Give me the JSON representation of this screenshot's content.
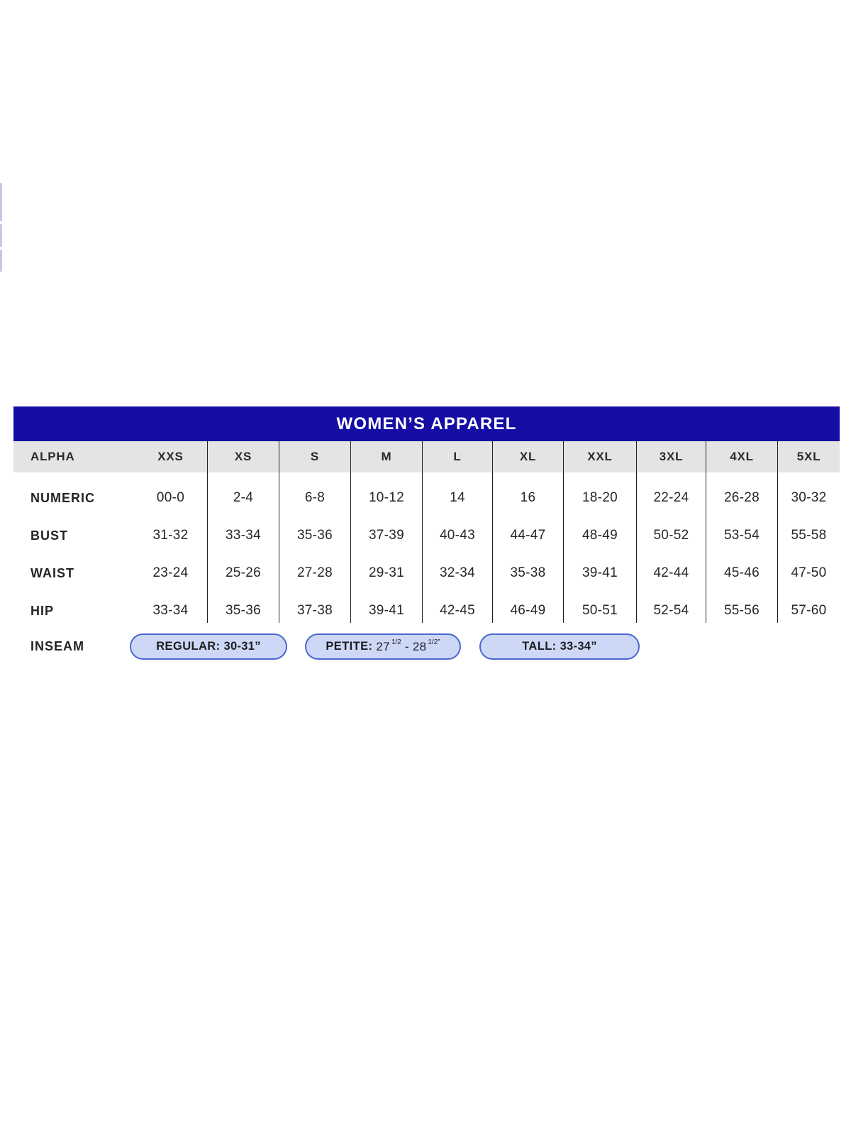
{
  "decor": {
    "left_edge_fragment_color": "#c9c5ec"
  },
  "colors": {
    "title_bar_bg": "#150da4",
    "title_text": "#ffffff",
    "header_row_bg": "#e4e4e4",
    "divider_line": "#202020",
    "body_text": "#262626",
    "pill_fill": "#cdd8f7",
    "pill_border": "#4a68cf"
  },
  "chart_data": {
    "type": "table",
    "title": "WOMEN’S APPAREL",
    "corner_label": "ALPHA",
    "columns": [
      "XXS",
      "XS",
      "S",
      "M",
      "L",
      "XL",
      "XXL",
      "3XL",
      "4XL",
      "5XL"
    ],
    "rows": [
      {
        "label": "NUMERIC",
        "values": [
          "00-0",
          "2-4",
          "6-8",
          "10-12",
          "14",
          "16",
          "18-20",
          "22-24",
          "26-28",
          "30-32"
        ]
      },
      {
        "label": "BUST",
        "values": [
          "31-32",
          "33-34",
          "35-36",
          "37-39",
          "40-43",
          "44-47",
          "48-49",
          "50-52",
          "53-54",
          "55-58"
        ]
      },
      {
        "label": "WAIST",
        "values": [
          "23-24",
          "25-26",
          "27-28",
          "29-31",
          "32-34",
          "35-38",
          "39-41",
          "42-44",
          "45-46",
          "47-50"
        ]
      },
      {
        "label": "HIP",
        "values": [
          "33-34",
          "35-36",
          "37-38",
          "39-41",
          "42-45",
          "46-49",
          "50-51",
          "52-54",
          "55-56",
          "57-60"
        ]
      }
    ],
    "inseam": {
      "label": "INSEAM",
      "pills": {
        "regular": {
          "label": "REGULAR: ",
          "value": "30-31”"
        },
        "petite": {
          "label": "PETITE: ",
          "v1": "27",
          "f1": "1/2",
          "dash": " - ",
          "v2": "28",
          "f2": "1/2”"
        },
        "tall": {
          "label": "TALL: ",
          "value": "33-34”"
        }
      }
    }
  }
}
